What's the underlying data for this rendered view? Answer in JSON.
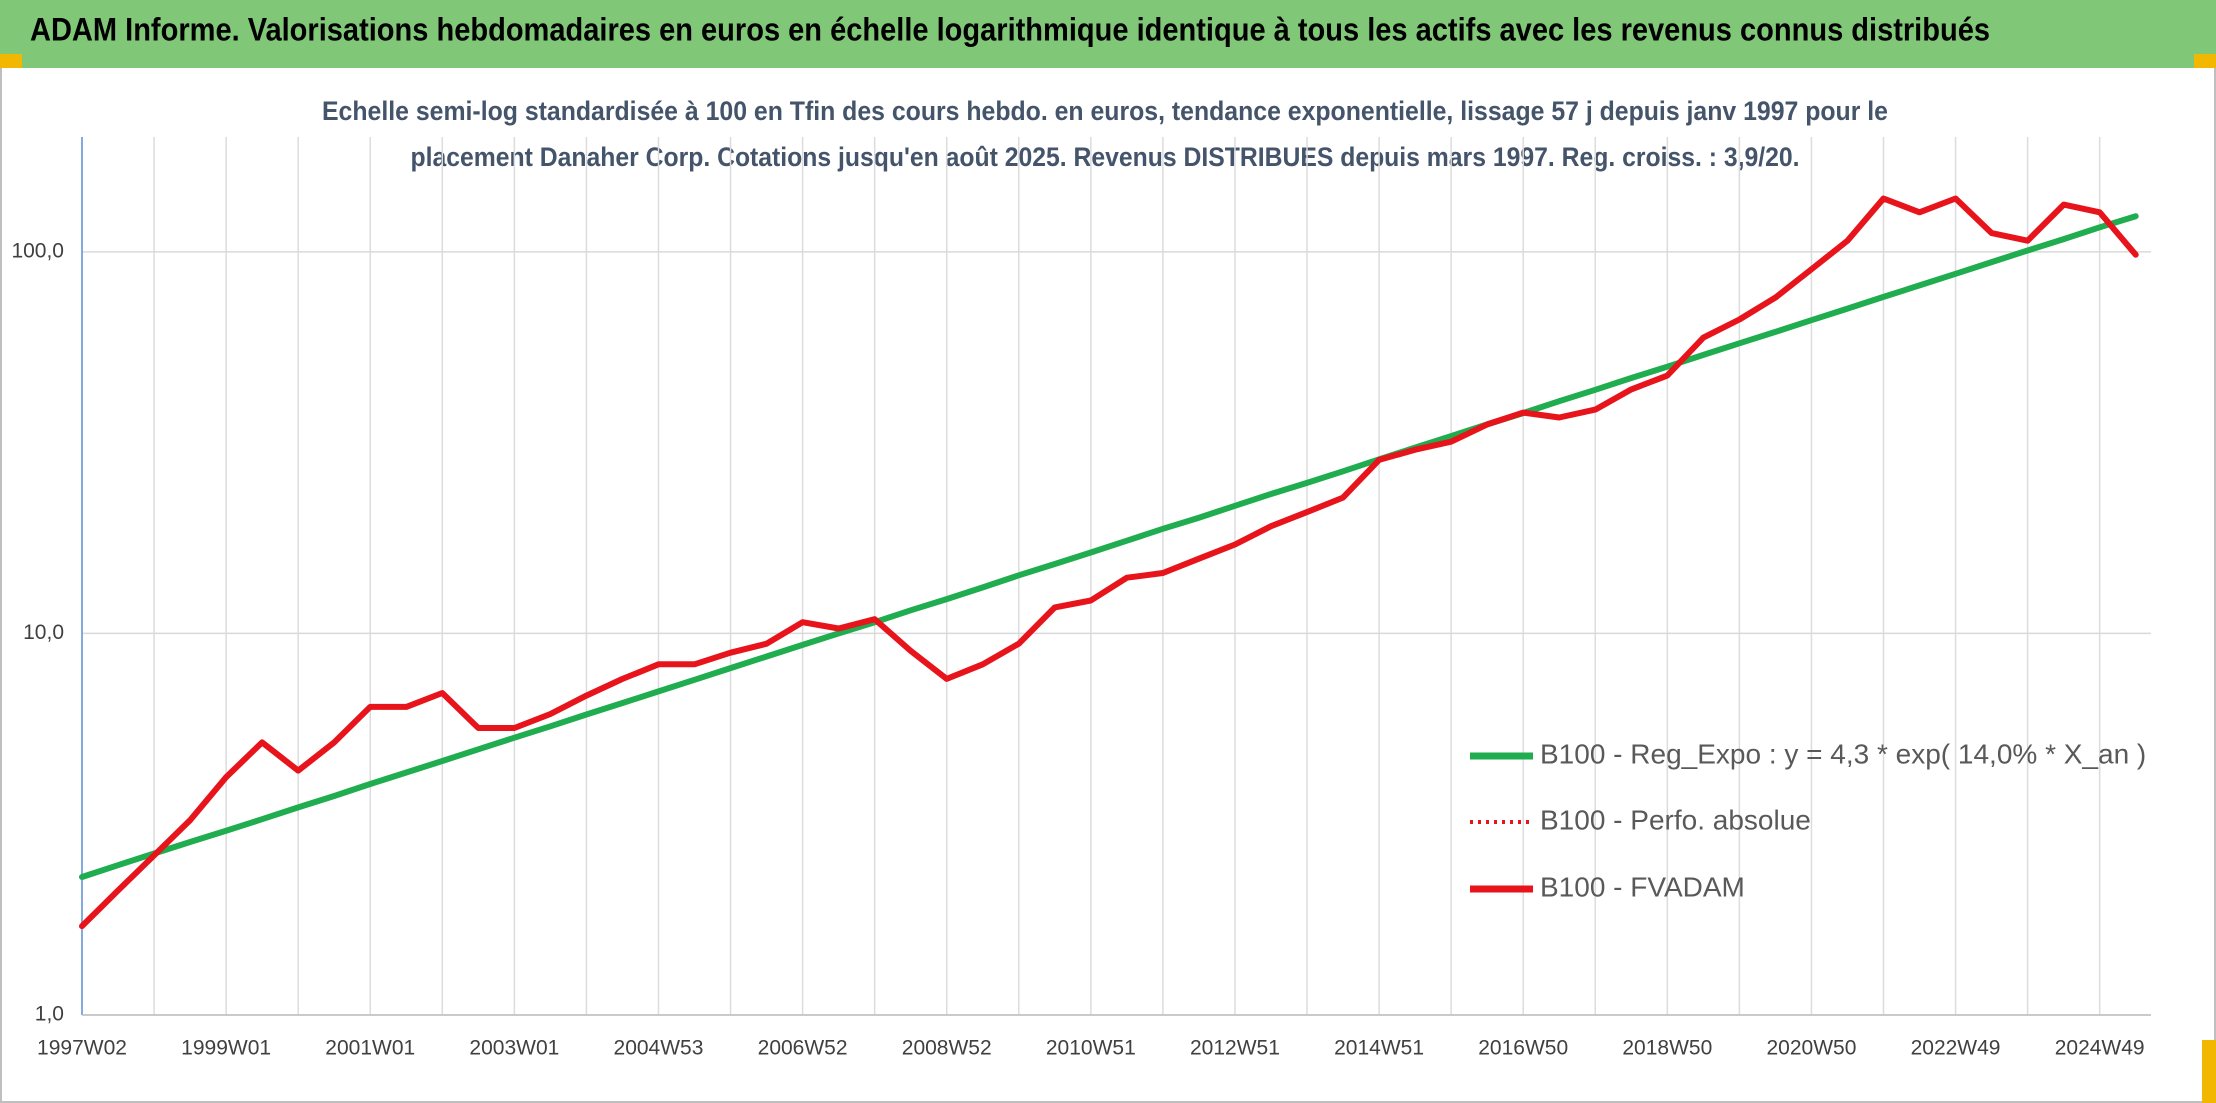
{
  "header": {
    "title": "ADAM Informe. Valorisations hebdomadaires en euros en échelle logarithmique identique à tous les actifs avec les revenus connus distribués"
  },
  "chart_data": {
    "type": "line",
    "subtitle": [
      "Echelle semi-log standardisée à 100 en Tfin des cours hebdo. en euros, tendance exponentielle, lissage 57 j depuis janv 1997 pour le",
      "placement Danaher Corp. Cotations jusqu'en août 2025. Revenus DISTRIBUES depuis mars 1997. Reg. croiss. : 3,9/20."
    ],
    "categories": [
      "1997W02",
      null,
      null,
      null,
      "1999W01",
      null,
      null,
      null,
      "2001W01",
      null,
      null,
      null,
      "2003W01",
      null,
      null,
      null,
      "2004W53",
      null,
      null,
      null,
      "2006W52",
      null,
      null,
      null,
      "2008W52",
      null,
      null,
      null,
      "2010W51",
      null,
      null,
      null,
      "2012W51",
      null,
      null,
      null,
      "2014W51",
      null,
      null,
      null,
      "2016W50",
      null,
      null,
      null,
      "2018W50",
      null,
      null,
      null,
      "2020W50",
      null,
      null,
      null,
      "2022W49",
      null,
      null,
      null,
      "2024W49",
      null
    ],
    "log_scale": true,
    "grid": true,
    "ylim": [
      1,
      200
    ],
    "yticks": [
      {
        "value": 1,
        "label": "1,0"
      },
      {
        "value": 10,
        "label": "10,0"
      },
      {
        "value": 100,
        "label": "100,0"
      }
    ],
    "series": [
      {
        "name": "B100 - Reg_Expo : y = 4,3 * exp( 14,0% *  X_an )",
        "color": "#1fad4f",
        "style": "solid",
        "values": [
          2.3,
          2.47,
          2.65,
          2.84,
          3.04,
          3.26,
          3.5,
          3.75,
          4.03,
          4.32,
          4.63,
          4.97,
          5.33,
          5.71,
          6.13,
          6.57,
          7.05,
          7.56,
          8.11,
          8.7,
          9.33,
          10.0,
          10.7,
          11.5,
          12.3,
          13.2,
          14.2,
          15.2,
          16.3,
          17.5,
          18.8,
          20.1,
          21.6,
          23.2,
          24.8,
          26.6,
          28.6,
          30.7,
          32.9,
          35.3,
          37.8,
          40.6,
          43.5,
          46.7,
          50.0,
          53.7,
          57.6,
          61.7,
          66.2,
          71.0,
          76.2,
          81.7,
          87.6,
          94.0,
          100.8,
          108,
          116,
          124
        ]
      },
      {
        "name": "B100 - Perfo. absolue",
        "color": "#e8141c",
        "style": "dotted",
        "values": [
          1.71,
          2.12,
          2.62,
          3.24,
          4.2,
          5.18,
          4.37,
          5.18,
          6.42,
          6.42,
          6.98,
          5.65,
          5.65,
          6.15,
          6.87,
          7.6,
          8.3,
          8.3,
          8.9,
          9.4,
          10.7,
          10.3,
          10.9,
          9.0,
          7.6,
          8.3,
          9.4,
          11.7,
          12.2,
          14.0,
          14.4,
          15.7,
          17.1,
          19.1,
          20.8,
          22.7,
          28.5,
          30.3,
          31.8,
          35.3,
          37.9,
          36.8,
          38.6,
          43.6,
          47.4,
          59.6,
          66.5,
          75.9,
          90,
          107,
          138,
          127,
          138,
          112,
          107,
          133,
          127,
          98.3
        ]
      },
      {
        "name": "B100 - FVADAM",
        "color": "#e8141c",
        "style": "solid",
        "values": [
          1.71,
          2.12,
          2.62,
          3.24,
          4.2,
          5.18,
          4.37,
          5.18,
          6.42,
          6.42,
          6.98,
          5.65,
          5.65,
          6.15,
          6.87,
          7.6,
          8.3,
          8.3,
          8.9,
          9.4,
          10.7,
          10.3,
          10.9,
          9.0,
          7.6,
          8.3,
          9.4,
          11.7,
          12.2,
          14.0,
          14.4,
          15.7,
          17.1,
          19.1,
          20.8,
          22.7,
          28.5,
          30.3,
          31.8,
          35.3,
          37.9,
          36.8,
          38.6,
          43.6,
          47.4,
          59.6,
          66.5,
          75.9,
          90,
          107,
          138,
          127,
          138,
          112,
          107,
          133,
          127,
          98.3
        ]
      }
    ]
  }
}
